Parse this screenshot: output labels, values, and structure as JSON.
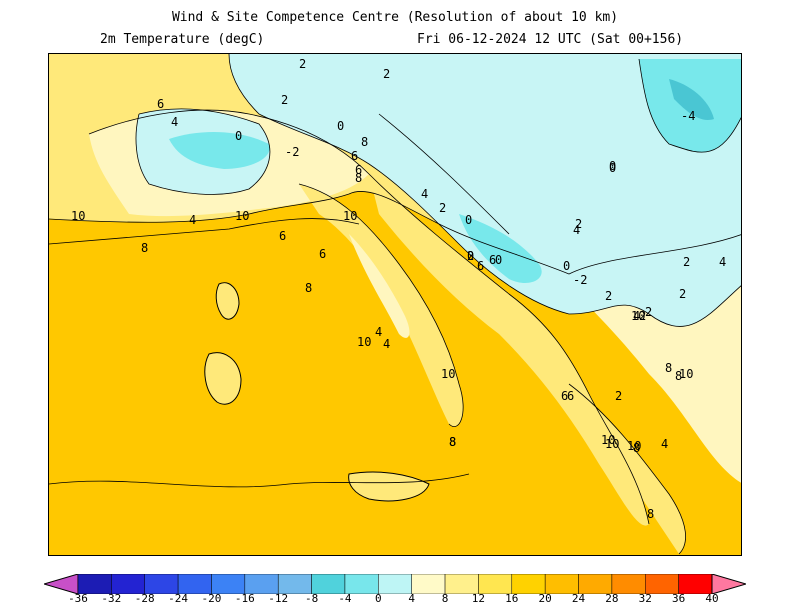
{
  "header": {
    "title": "Wind & Site Competence Centre (Resolution of about 10 km)",
    "variable": "2m Temperature (degC)",
    "valid_time": "Fri 06-12-2024 12 UTC (Sat 00+156)"
  },
  "map": {
    "contour_labels": [
      "2",
      "2",
      "6",
      "4",
      "2",
      "0",
      "-2",
      "0",
      "8",
      "6",
      "6",
      "8",
      "4",
      "2",
      "10",
      "4",
      "10",
      "8",
      "0",
      "2",
      "0",
      "-2",
      "2",
      "0",
      "10",
      "6",
      "6",
      "8",
      "0",
      "6",
      "4",
      "4",
      "10",
      "10",
      "8",
      "6",
      "2",
      "10",
      "4",
      "8",
      "10",
      "8",
      "0",
      "4",
      "2",
      "2",
      "6",
      "0",
      "-4",
      "4",
      "2",
      "2",
      "4",
      "8",
      "10",
      "10",
      "6",
      "2",
      "10",
      "8",
      "8"
    ],
    "colors": {
      "land_warm": "#ffc800",
      "land_mid": "#ffe97a",
      "land_cool": "#fff6bf",
      "cold_light": "#c8f5f5",
      "cold_mid": "#78e8eb",
      "cold_dark": "#4ac6d3"
    }
  },
  "colorbar": {
    "ticks": [
      "-36",
      "-32",
      "-28",
      "-24",
      "-20",
      "-16",
      "-12",
      "-8",
      "-4",
      "0",
      "4",
      "8",
      "12",
      "16",
      "20",
      "24",
      "28",
      "32",
      "36",
      "40"
    ],
    "colors": [
      "#1c1cb4",
      "#2323d2",
      "#2d46e6",
      "#3264f0",
      "#3c82f5",
      "#5aa0f0",
      "#73b9eb",
      "#50d2dc",
      "#78e6eb",
      "#bef5f5",
      "#fffac8",
      "#fff08c",
      "#ffe650",
      "#ffd200",
      "#ffbe00",
      "#ffaa00",
      "#ff8c00",
      "#ff6400",
      "#ff0000"
    ],
    "low_end_color": "#c850c8",
    "high_end_color": "#ff78a0"
  }
}
